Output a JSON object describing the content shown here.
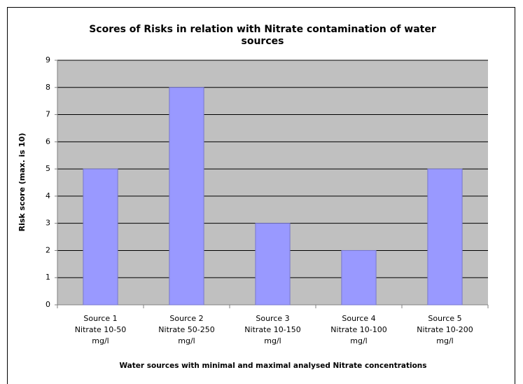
{
  "chart_data": {
    "type": "bar",
    "title": "Scores of Risks in relation with Nitrate contamination of water sources",
    "x_label": "Water sources with minimal and maximal analysed Nitrate concentrations",
    "y_label": "Risk score (max. is 10)",
    "categories": [
      [
        "Source 1",
        "Nitrate 10-50",
        "mg/l"
      ],
      [
        "Source 2",
        "Nitrate 50-250",
        "mg/l"
      ],
      [
        "Source 3",
        "Nitrate 10-150",
        "mg/l"
      ],
      [
        "Source 4",
        "Nitrate 10-100",
        "mg/l"
      ],
      [
        "Source 5",
        "Nitrate 10-200",
        "mg/l"
      ]
    ],
    "values": [
      5,
      8,
      3,
      2,
      5
    ],
    "color": "#9999ff",
    "ylim": [
      0,
      9
    ],
    "yticks": [
      0,
      1,
      2,
      3,
      4,
      5,
      6,
      7,
      8,
      9
    ],
    "grid": true
  }
}
